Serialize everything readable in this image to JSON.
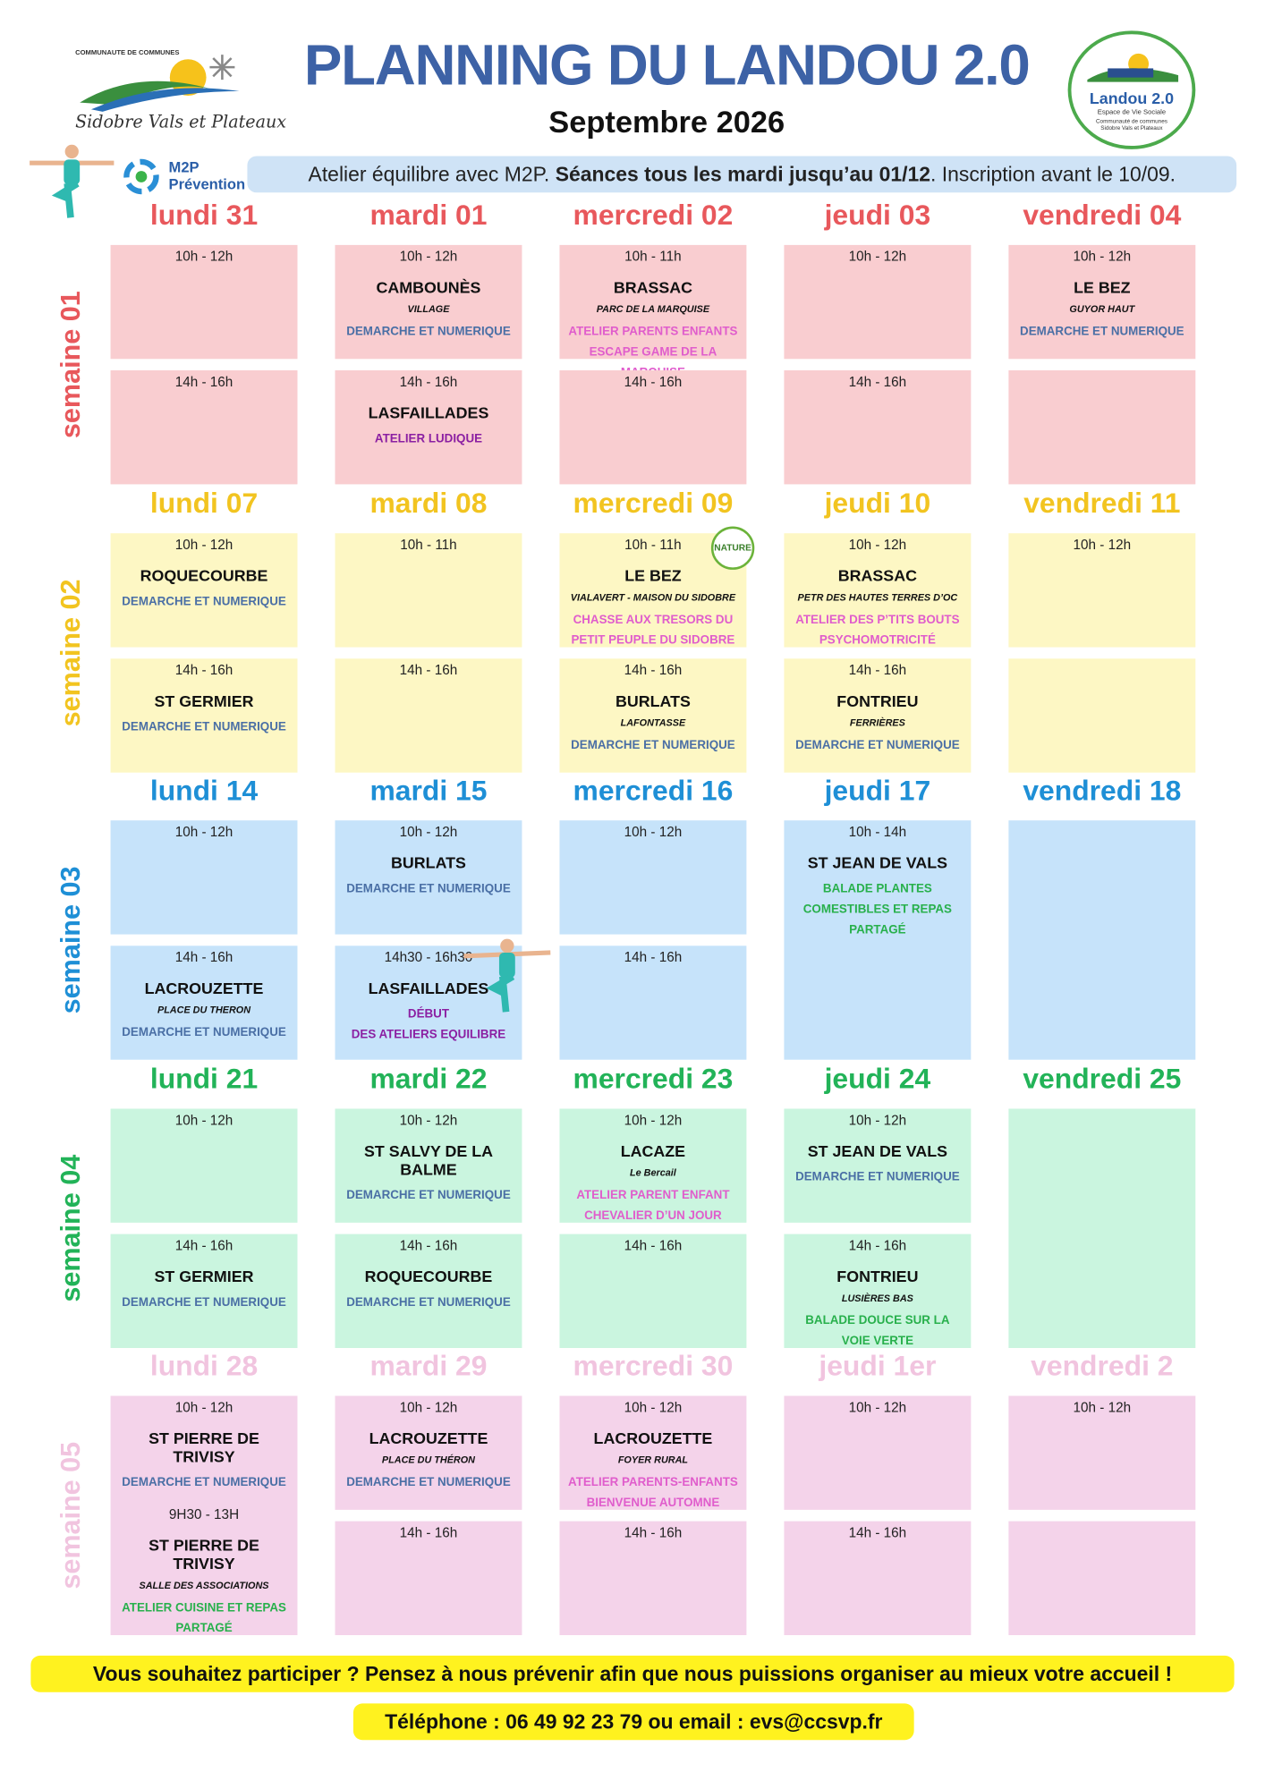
{
  "header": {
    "org_small": "COMMUNAUTE DE COMMUNES",
    "org_name": "Sidobre Vals et Plateaux",
    "title": "PLANNING DU LANDOU 2.0",
    "subtitle": "Septembre 2026",
    "badge": {
      "name": "Landou 2.0",
      "line1": "Espace de Vie Sociale",
      "line2": "Communauté de communes",
      "line3": "Sidobre Vals et Plateaux"
    },
    "m2p": {
      "name": "M2P",
      "tag": "Prévention"
    }
  },
  "banner": {
    "intro": "Atelier équilibre avec M2P.",
    "highlight": "Séances tous les mardi jusqu’au 01/12",
    "outro": ". Inscription avant le 10/09."
  },
  "nature_badge": "NATURE",
  "weeks": [
    {
      "label": "semaine 01",
      "days": [
        {
          "name": "lundi 31",
          "cells": [
            [
              {
                "time": "10h - 12h",
                "lines": []
              }
            ],
            [
              {
                "time": "14h - 16h",
                "lines": []
              }
            ]
          ]
        },
        {
          "name": "mardi 01",
          "cells": [
            [
              {
                "time": "10h - 12h",
                "lines": [
                  {
                    "text": "CAMBOUNÈS",
                    "kind": "place"
                  },
                  {
                    "text": "VILLAGE",
                    "kind": "sub"
                  },
                  {
                    "text": "DEMARCHE ET NUMERIQUE",
                    "kind": "blue"
                  }
                ]
              }
            ],
            [
              {
                "time": "14h - 16h",
                "lines": [
                  {
                    "text": "LASFAILLADES",
                    "kind": "place"
                  },
                  {
                    "text": "ATELIER LUDIQUE",
                    "kind": "purple"
                  }
                ]
              }
            ]
          ]
        },
        {
          "name": "mercredi 02",
          "cells": [
            [
              {
                "time": "10h - 11h",
                "lines": [
                  {
                    "text": "BRASSAC",
                    "kind": "place"
                  },
                  {
                    "text": "PARC DE LA MARQUISE",
                    "kind": "sub"
                  },
                  {
                    "text": "ATELIER PARENTS ENFANTS ESCAPE GAME DE LA MARQUISE",
                    "kind": "pink"
                  }
                ]
              }
            ],
            [
              {
                "time": "14h - 16h",
                "lines": []
              }
            ]
          ]
        },
        {
          "name": "jeudi 03",
          "cells": [
            [
              {
                "time": "10h - 12h",
                "lines": []
              }
            ],
            [
              {
                "time": "14h - 16h",
                "lines": []
              }
            ]
          ]
        },
        {
          "name": "vendredi 04",
          "cells": [
            [
              {
                "time": "10h - 12h",
                "lines": [
                  {
                    "text": "LE BEZ",
                    "kind": "place"
                  },
                  {
                    "text": "GUYOR HAUT",
                    "kind": "sub"
                  },
                  {
                    "text": "DEMARCHE ET NUMERIQUE",
                    "kind": "blue"
                  }
                ]
              }
            ],
            []
          ]
        }
      ]
    },
    {
      "label": "semaine 02",
      "days": [
        {
          "name": "lundi 07",
          "cells": [
            [
              {
                "time": "10h - 12h",
                "lines": [
                  {
                    "text": "ROQUECOURBE",
                    "kind": "place"
                  },
                  {
                    "text": "DEMARCHE ET NUMERIQUE",
                    "kind": "blue"
                  }
                ]
              }
            ],
            [
              {
                "time": "14h - 16h",
                "lines": [
                  {
                    "text": "ST GERMIER",
                    "kind": "place"
                  },
                  {
                    "text": "DEMARCHE ET NUMERIQUE",
                    "kind": "blue"
                  }
                ]
              }
            ]
          ]
        },
        {
          "name": "mardi 08",
          "cells": [
            [
              {
                "time": "10h - 11h",
                "lines": []
              }
            ],
            [
              {
                "time": "14h - 16h",
                "lines": []
              }
            ]
          ]
        },
        {
          "name": "mercredi 09",
          "cells": [
            [
              {
                "time": "10h - 11h",
                "lines": [
                  {
                    "text": "LE BEZ",
                    "kind": "place"
                  },
                  {
                    "text": "VIALAVERT - MAISON DU SIDOBRE",
                    "kind": "sub"
                  },
                  {
                    "text": "CHASSE AUX TRESORS DU PETIT PEUPLE DU SIDOBRE",
                    "kind": "pink"
                  }
                ]
              }
            ],
            [
              {
                "time": "14h - 16h",
                "lines": [
                  {
                    "text": "BURLATS",
                    "kind": "place"
                  },
                  {
                    "text": "LAFONTASSE",
                    "kind": "sub"
                  },
                  {
                    "text": "DEMARCHE ET NUMERIQUE",
                    "kind": "blue"
                  }
                ]
              }
            ]
          ]
        },
        {
          "name": "jeudi 10",
          "cells": [
            [
              {
                "time": "10h - 12h",
                "lines": [
                  {
                    "text": "BRASSAC",
                    "kind": "place"
                  },
                  {
                    "text": "PETR DES HAUTES TERRES D’OC",
                    "kind": "sub"
                  },
                  {
                    "text": "ATELIER DES P’TITS BOUTS PSYCHOMOTRICITÉ",
                    "kind": "pink"
                  }
                ]
              }
            ],
            [
              {
                "time": "14h - 16h",
                "lines": [
                  {
                    "text": "FONTRIEU",
                    "kind": "place"
                  },
                  {
                    "text": "FERRIÈRES",
                    "kind": "sub"
                  },
                  {
                    "text": "DEMARCHE ET NUMERIQUE",
                    "kind": "blue"
                  }
                ]
              }
            ]
          ]
        },
        {
          "name": "vendredi 11",
          "cells": [
            [
              {
                "time": "10h - 12h",
                "lines": []
              }
            ],
            []
          ]
        }
      ]
    },
    {
      "label": "semaine 03",
      "days": [
        {
          "name": "lundi 14",
          "cells": [
            [
              {
                "time": "10h - 12h",
                "lines": []
              }
            ],
            [
              {
                "time": "14h - 16h",
                "lines": [
                  {
                    "text": "LACROUZETTE",
                    "kind": "place"
                  },
                  {
                    "text": "PLACE DU THERON",
                    "kind": "sub"
                  },
                  {
                    "text": "DEMARCHE ET NUMERIQUE",
                    "kind": "blue"
                  }
                ]
              }
            ]
          ]
        },
        {
          "name": "mardi 15",
          "cells": [
            [
              {
                "time": "10h - 12h",
                "lines": [
                  {
                    "text": "BURLATS",
                    "kind": "place"
                  },
                  {
                    "text": "DEMARCHE ET NUMERIQUE",
                    "kind": "blue"
                  }
                ]
              }
            ],
            [
              {
                "time": "14h30 - 16h30",
                "lines": [
                  {
                    "text": "LASFAILLADES",
                    "kind": "place"
                  },
                  {
                    "text": "DÉBUT",
                    "kind": "purple"
                  },
                  {
                    "text": "DES ATELIERS EQUILIBRE",
                    "kind": "purple"
                  }
                ]
              }
            ]
          ]
        },
        {
          "name": "mercredi 16",
          "cells": [
            [
              {
                "time": "10h - 12h",
                "lines": []
              }
            ],
            [
              {
                "time": "14h - 16h",
                "lines": []
              }
            ]
          ]
        },
        {
          "name": "jeudi 17",
          "cells": [
            [
              {
                "time": "10h - 14h",
                "lines": [
                  {
                    "text": "ST JEAN DE VALS",
                    "kind": "place"
                  },
                  {
                    "text": "BALADE PLANTES COMESTIBLES ET REPAS PARTAGÉ",
                    "kind": "green"
                  }
                ]
              }
            ]
          ]
        },
        {
          "name": "vendredi 18",
          "cells": [
            []
          ]
        }
      ]
    },
    {
      "label": "semaine 04",
      "days": [
        {
          "name": "lundi 21",
          "cells": [
            [
              {
                "time": "10h - 12h",
                "lines": []
              }
            ],
            [
              {
                "time": "14h - 16h",
                "lines": [
                  {
                    "text": "ST GERMIER",
                    "kind": "place"
                  },
                  {
                    "text": "DEMARCHE ET NUMERIQUE",
                    "kind": "blue"
                  }
                ]
              }
            ]
          ]
        },
        {
          "name": "mardi 22",
          "cells": [
            [
              {
                "time": "10h - 12h",
                "lines": [
                  {
                    "text": "ST SALVY DE LA BALME",
                    "kind": "place"
                  },
                  {
                    "text": "DEMARCHE ET NUMERIQUE",
                    "kind": "blue"
                  }
                ]
              }
            ],
            [
              {
                "time": "14h - 16h",
                "lines": [
                  {
                    "text": "ROQUECOURBE",
                    "kind": "place"
                  },
                  {
                    "text": "DEMARCHE ET NUMERIQUE",
                    "kind": "blue"
                  }
                ]
              }
            ]
          ]
        },
        {
          "name": "mercredi 23",
          "cells": [
            [
              {
                "time": "10h - 12h",
                "lines": [
                  {
                    "text": "LACAZE",
                    "kind": "place"
                  },
                  {
                    "text": "Le Bercail",
                    "kind": "sub"
                  },
                  {
                    "text": "ATELIER PARENT ENFANT CHEVALIER D’UN JOUR",
                    "kind": "pink"
                  }
                ]
              }
            ],
            [
              {
                "time": "14h - 16h",
                "lines": []
              }
            ]
          ]
        },
        {
          "name": "jeudi 24",
          "cells": [
            [
              {
                "time": "10h - 12h",
                "lines": [
                  {
                    "text": "ST JEAN DE VALS",
                    "kind": "place"
                  },
                  {
                    "text": "DEMARCHE ET NUMERIQUE",
                    "kind": "blue"
                  }
                ]
              }
            ],
            [
              {
                "time": "14h - 16h",
                "lines": [
                  {
                    "text": "FONTRIEU",
                    "kind": "place"
                  },
                  {
                    "text": "LUSIÈRES BAS",
                    "kind": "sub"
                  },
                  {
                    "text": "BALADE DOUCE SUR LA VOIE VERTE",
                    "kind": "green"
                  }
                ]
              }
            ]
          ]
        },
        {
          "name": "vendredi 25",
          "cells": [
            []
          ]
        }
      ]
    },
    {
      "label": "semaine 05",
      "days": [
        {
          "name": "lundi 28",
          "cells": [
            [
              {
                "time": "10h - 12h",
                "lines": [
                  {
                    "text": "ST PIERRE DE TRIVISY",
                    "kind": "place"
                  },
                  {
                    "text": "DEMARCHE ET NUMERIQUE",
                    "kind": "blue"
                  }
                ]
              },
              {
                "time": "9H30 - 13H",
                "lines": [
                  {
                    "text": "ST PIERRE DE TRIVISY",
                    "kind": "place"
                  },
                  {
                    "text": "SALLE DES ASSOCIATIONS",
                    "kind": "sub"
                  },
                  {
                    "text": "ATELIER CUISINE ET REPAS PARTAGÉ",
                    "kind": "green"
                  }
                ]
              }
            ]
          ]
        },
        {
          "name": "mardi 29",
          "cells": [
            [
              {
                "time": "10h - 12h",
                "lines": [
                  {
                    "text": "LACROUZETTE",
                    "kind": "place"
                  },
                  {
                    "text": "PLACE DU THÉRON",
                    "kind": "sub"
                  },
                  {
                    "text": "DEMARCHE ET NUMERIQUE",
                    "kind": "blue"
                  }
                ]
              }
            ],
            [
              {
                "time": "14h - 16h",
                "lines": []
              }
            ]
          ]
        },
        {
          "name": "mercredi 30",
          "cells": [
            [
              {
                "time": "10h - 12h",
                "lines": [
                  {
                    "text": "LACROUZETTE",
                    "kind": "place"
                  },
                  {
                    "text": "FOYER RURAL",
                    "kind": "sub"
                  },
                  {
                    "text": "ATELIER PARENTS-ENFANTS BIENVENUE AUTOMNE",
                    "kind": "pink"
                  }
                ]
              }
            ],
            [
              {
                "time": "14h - 16h",
                "lines": []
              }
            ]
          ]
        },
        {
          "name": "jeudi 1er",
          "cells": [
            [
              {
                "time": "10h - 12h",
                "lines": []
              }
            ],
            [
              {
                "time": "14h - 16h",
                "lines": []
              }
            ]
          ]
        },
        {
          "name": "vendredi 2",
          "cells": [
            [
              {
                "time": "10h - 12h",
                "lines": []
              }
            ],
            []
          ]
        }
      ]
    }
  ],
  "footer": {
    "notice": "Vous souhaitez participer ? Pensez à nous prévenir afin que nous puissions organiser au mieux votre accueil !",
    "contact": "Téléphone : 06 49 92 23 79 ou email : evs@ccsvp.fr"
  }
}
